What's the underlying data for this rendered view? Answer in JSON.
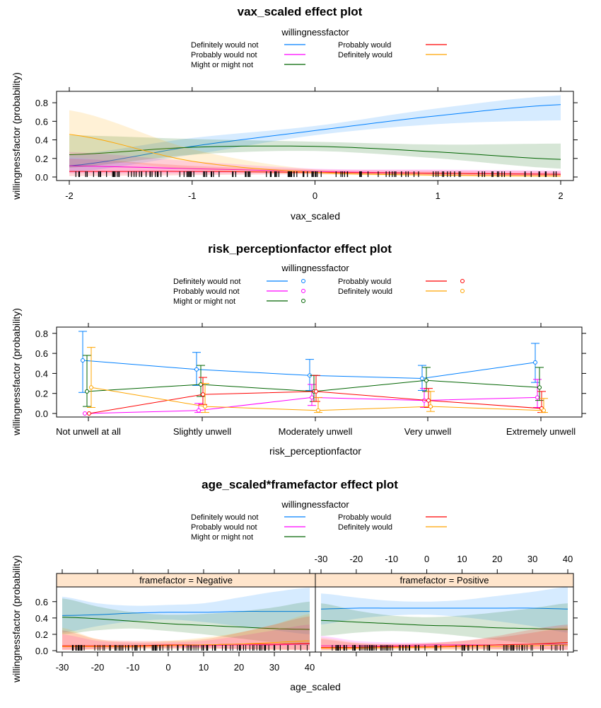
{
  "colors": {
    "Definitely would not": "#0080ff",
    "Probably would not": "#ff00ff",
    "Might or might not": "#006400",
    "Probably would": "#ff0000",
    "Definitely would": "#ffa500",
    "strip_bg": "#ffe5cc"
  },
  "chart_data": [
    {
      "type": "line",
      "title": "vax_scaled effect plot",
      "legend_title": "willingnessfactor",
      "legend_position": "top",
      "legend": [
        "Definitely would not",
        "Probably would not",
        "Might or might not",
        "Probably would",
        "Definitely would"
      ],
      "xlabel": "vax_scaled",
      "ylabel": "willingnessfactor (probability)",
      "xlim": [
        -2,
        2
      ],
      "ylim": [
        0,
        0.9
      ],
      "xticks": [
        "-2",
        "-1",
        "0",
        "1",
        "2"
      ],
      "yticks": [
        "0.0",
        "0.2",
        "0.4",
        "0.6",
        "0.8"
      ],
      "x": [
        -2,
        -1,
        0,
        1,
        2
      ],
      "series": [
        {
          "name": "Definitely would not",
          "values": [
            0.12,
            0.33,
            0.5,
            0.66,
            0.78
          ],
          "lower": [
            0.05,
            0.24,
            0.45,
            0.57,
            0.61
          ],
          "upper": [
            0.24,
            0.42,
            0.55,
            0.74,
            0.88
          ]
        },
        {
          "name": "Probably would not",
          "values": [
            0.12,
            0.09,
            0.06,
            0.04,
            0.03
          ],
          "lower": [
            0.04,
            0.04,
            0.04,
            0.02,
            0.01
          ],
          "upper": [
            0.27,
            0.17,
            0.09,
            0.08,
            0.07
          ]
        },
        {
          "name": "Might or might not",
          "values": [
            0.24,
            0.32,
            0.33,
            0.27,
            0.19
          ],
          "lower": [
            0.1,
            0.24,
            0.28,
            0.2,
            0.09
          ],
          "upper": [
            0.45,
            0.41,
            0.38,
            0.35,
            0.36
          ]
        },
        {
          "name": "Probably would",
          "values": [
            0.06,
            0.06,
            0.05,
            0.04,
            0.03
          ],
          "lower": [
            0.01,
            0.02,
            0.03,
            0.02,
            0.01
          ],
          "upper": [
            0.2,
            0.12,
            0.08,
            0.07,
            0.06
          ]
        },
        {
          "name": "Definitely would",
          "values": [
            0.46,
            0.17,
            0.05,
            0.02,
            0.01
          ],
          "lower": [
            0.21,
            0.08,
            0.03,
            0.01,
            0.0
          ],
          "upper": [
            0.72,
            0.3,
            0.08,
            0.05,
            0.03
          ]
        }
      ],
      "rug": true
    },
    {
      "type": "line",
      "title": "risk_perceptionfactor effect plot",
      "legend_title": "willingnessfactor",
      "legend_position": "top",
      "legend": [
        "Definitely would not",
        "Probably would not",
        "Might or might not",
        "Probably would",
        "Definitely would"
      ],
      "xlabel": "risk_perceptionfactor",
      "ylabel": "willingnessfactor (probability)",
      "ylim": [
        0,
        0.85
      ],
      "yticks": [
        "0.0",
        "0.2",
        "0.4",
        "0.6",
        "0.8"
      ],
      "categories": [
        "Not unwell at all",
        "Slightly unwell",
        "Moderately unwell",
        "Very unwell",
        "Extremely unwell"
      ],
      "series": [
        {
          "name": "Definitely would not",
          "values": [
            0.53,
            0.44,
            0.38,
            0.35,
            0.51
          ],
          "lower": [
            0.21,
            0.28,
            0.23,
            0.23,
            0.31
          ],
          "upper": [
            0.82,
            0.61,
            0.54,
            0.48,
            0.7
          ]
        },
        {
          "name": "Probably would not",
          "values": [
            0.0,
            0.03,
            0.16,
            0.13,
            0.16
          ],
          "lower": [
            0.0,
            0.01,
            0.08,
            0.06,
            0.06
          ],
          "upper": [
            0.0,
            0.1,
            0.29,
            0.25,
            0.34
          ]
        },
        {
          "name": "Might or might not",
          "values": [
            0.22,
            0.29,
            0.22,
            0.33,
            0.26
          ],
          "lower": [
            0.07,
            0.17,
            0.12,
            0.22,
            0.13
          ],
          "upper": [
            0.58,
            0.48,
            0.38,
            0.46,
            0.46
          ]
        },
        {
          "name": "Probably would",
          "values": [
            0.0,
            0.19,
            0.22,
            0.13,
            0.05
          ],
          "lower": [
            0.0,
            0.09,
            0.12,
            0.06,
            0.01
          ],
          "upper": [
            0.0,
            0.36,
            0.38,
            0.25,
            0.22
          ]
        },
        {
          "name": "Definitely would",
          "values": [
            0.26,
            0.07,
            0.03,
            0.07,
            0.03
          ],
          "lower": [
            0.06,
            0.01,
            0.01,
            0.02,
            0.01
          ],
          "upper": [
            0.66,
            0.3,
            0.16,
            0.22,
            0.15
          ]
        }
      ]
    },
    {
      "type": "line",
      "title": "age_scaled*framefactor effect plot",
      "legend_title": "willingnessfactor",
      "legend_position": "top",
      "legend": [
        "Definitely would not",
        "Probably would not",
        "Might or might not",
        "Probably would",
        "Definitely would"
      ],
      "xlabel": "age_scaled",
      "ylabel": "willingnessfactor (probability)",
      "xlim": [
        -30,
        40
      ],
      "ylim": [
        0,
        0.78
      ],
      "xticks": [
        "-30",
        "-20",
        "-10",
        "0",
        "10",
        "20",
        "30",
        "40"
      ],
      "yticks": [
        "0.0",
        "0.2",
        "0.4",
        "0.6"
      ],
      "x": [
        -30,
        -20,
        -10,
        0,
        10,
        20,
        30,
        40
      ],
      "panels": [
        {
          "strip": "framefactor = Negative",
          "series": [
            {
              "name": "Definitely would not",
              "values": [
                0.43,
                0.44,
                0.46,
                0.47,
                0.47,
                0.48,
                0.48,
                0.48
              ],
              "lower": [
                0.22,
                0.3,
                0.36,
                0.38,
                0.35,
                0.3,
                0.25,
                0.2
              ],
              "upper": [
                0.66,
                0.58,
                0.55,
                0.56,
                0.58,
                0.65,
                0.72,
                0.77
              ]
            },
            {
              "name": "Probably would not",
              "values": [
                0.05,
                0.05,
                0.06,
                0.06,
                0.06,
                0.07,
                0.07,
                0.08
              ],
              "lower": [
                0.01,
                0.02,
                0.03,
                0.03,
                0.03,
                0.02,
                0.02,
                0.01
              ],
              "upper": [
                0.2,
                0.12,
                0.1,
                0.1,
                0.12,
                0.18,
                0.25,
                0.32
              ]
            },
            {
              "name": "Might or might not",
              "values": [
                0.41,
                0.39,
                0.36,
                0.33,
                0.31,
                0.29,
                0.27,
                0.26
              ],
              "lower": [
                0.2,
                0.25,
                0.27,
                0.24,
                0.2,
                0.15,
                0.1,
                0.06
              ],
              "upper": [
                0.64,
                0.54,
                0.47,
                0.44,
                0.45,
                0.48,
                0.53,
                0.6
              ]
            },
            {
              "name": "Probably would",
              "values": [
                0.06,
                0.06,
                0.06,
                0.07,
                0.07,
                0.08,
                0.08,
                0.09
              ],
              "lower": [
                0.01,
                0.02,
                0.03,
                0.03,
                0.03,
                0.02,
                0.01,
                0.01
              ],
              "upper": [
                0.25,
                0.14,
                0.12,
                0.12,
                0.14,
                0.22,
                0.32,
                0.42
              ]
            },
            {
              "name": "Definitely would",
              "values": [
                0.05,
                0.05,
                0.05,
                0.06,
                0.07,
                0.08,
                0.1,
                0.12
              ],
              "lower": [
                0.01,
                0.01,
                0.02,
                0.02,
                0.02,
                0.02,
                0.01,
                0.01
              ],
              "upper": [
                0.28,
                0.14,
                0.1,
                0.12,
                0.16,
                0.22,
                0.32,
                0.45
              ]
            }
          ]
        },
        {
          "strip": "framefactor = Positive",
          "series": [
            {
              "name": "Definitely would not",
              "values": [
                0.51,
                0.52,
                0.52,
                0.52,
                0.52,
                0.52,
                0.52,
                0.51
              ],
              "lower": [
                0.32,
                0.39,
                0.43,
                0.44,
                0.41,
                0.36,
                0.3,
                0.22
              ],
              "upper": [
                0.7,
                0.65,
                0.61,
                0.6,
                0.62,
                0.67,
                0.72,
                0.78
              ]
            },
            {
              "name": "Probably would not",
              "values": [
                0.06,
                0.06,
                0.06,
                0.07,
                0.07,
                0.07,
                0.08,
                0.08
              ],
              "lower": [
                0.01,
                0.02,
                0.03,
                0.03,
                0.03,
                0.02,
                0.02,
                0.01
              ],
              "upper": [
                0.18,
                0.12,
                0.1,
                0.1,
                0.12,
                0.16,
                0.22,
                0.28
              ]
            },
            {
              "name": "Might or might not",
              "values": [
                0.37,
                0.35,
                0.33,
                0.31,
                0.3,
                0.28,
                0.27,
                0.26
              ],
              "lower": [
                0.18,
                0.22,
                0.24,
                0.22,
                0.18,
                0.13,
                0.09,
                0.05
              ],
              "upper": [
                0.58,
                0.49,
                0.43,
                0.41,
                0.43,
                0.47,
                0.52,
                0.58
              ]
            },
            {
              "name": "Probably would",
              "values": [
                0.04,
                0.04,
                0.05,
                0.05,
                0.06,
                0.07,
                0.08,
                0.1
              ],
              "lower": [
                0.01,
                0.01,
                0.02,
                0.02,
                0.02,
                0.02,
                0.02,
                0.01
              ],
              "upper": [
                0.14,
                0.09,
                0.08,
                0.09,
                0.12,
                0.18,
                0.26,
                0.32
              ]
            },
            {
              "name": "Definitely would",
              "values": [
                0.03,
                0.03,
                0.04,
                0.04,
                0.05,
                0.05,
                0.06,
                0.07
              ],
              "lower": [
                0.0,
                0.01,
                0.01,
                0.01,
                0.01,
                0.01,
                0.01,
                0.01
              ],
              "upper": [
                0.16,
                0.1,
                0.08,
                0.09,
                0.12,
                0.16,
                0.22,
                0.3
              ]
            }
          ]
        }
      ],
      "rug": true
    }
  ]
}
